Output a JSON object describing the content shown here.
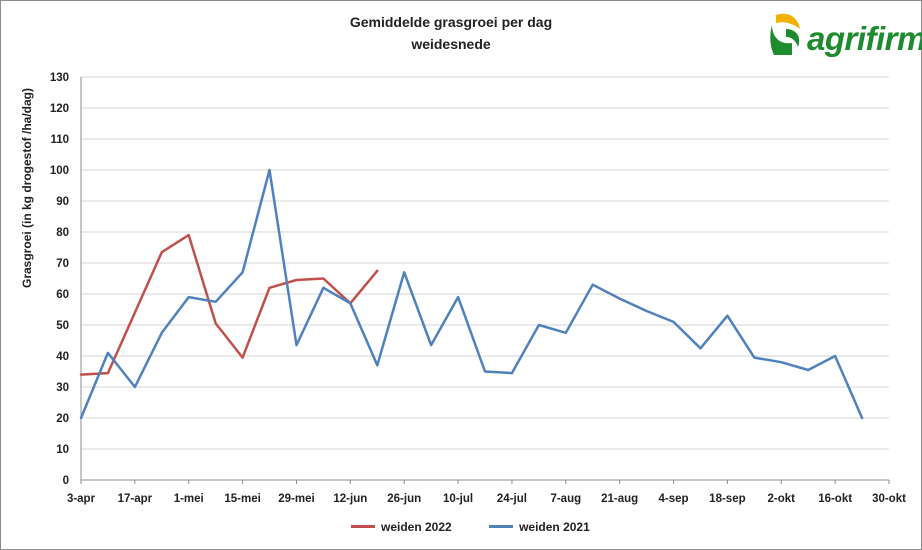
{
  "logo": {
    "name": "agrifirm",
    "icon": "agrifirm-logo-icon"
  },
  "colors": {
    "series_2022": "#c0504d",
    "series_2021": "#4f81bd",
    "logo_green": "#1e8c2e",
    "logo_yellow": "#f2b100"
  },
  "chart_data": {
    "type": "line",
    "title_lines": [
      "Gemiddelde grasgroei per dag",
      "weidesnede"
    ],
    "ylabel": "Grasgroei (in kg drogestof /ha/dag)",
    "xlabel": "",
    "ylim": [
      0,
      130
    ],
    "yticks": [
      0,
      10,
      20,
      30,
      40,
      50,
      60,
      70,
      80,
      90,
      100,
      110,
      120,
      130
    ],
    "xlim": [
      "2021-04-03",
      "2021-10-30"
    ],
    "xticks": [
      "3-apr",
      "17-apr",
      "1-mei",
      "15-mei",
      "29-mei",
      "12-jun",
      "26-jun",
      "10-jul",
      "24-jul",
      "7-aug",
      "21-aug",
      "4-sep",
      "18-sep",
      "2-okt",
      "16-okt",
      "30-okt"
    ],
    "grid": {
      "horizontal": true,
      "vertical": false
    },
    "legend_position": "bottom",
    "series": [
      {
        "name": "weiden 2022",
        "color": "#c0504d",
        "x": [
          "2021-04-03",
          "2021-04-10",
          "2021-04-17",
          "2021-04-24",
          "2021-05-01",
          "2021-05-08",
          "2021-05-15",
          "2021-05-22",
          "2021-05-29",
          "2021-06-05",
          "2021-06-12",
          "2021-06-19"
        ],
        "y": [
          34,
          34.5,
          54,
          73.5,
          79,
          50.5,
          39.5,
          62,
          64.5,
          65,
          57,
          67.5
        ]
      },
      {
        "name": "weiden 2021",
        "color": "#4f81bd",
        "x": [
          "2021-04-03",
          "2021-04-10",
          "2021-04-17",
          "2021-04-24",
          "2021-05-01",
          "2021-05-08",
          "2021-05-15",
          "2021-05-22",
          "2021-05-29",
          "2021-06-05",
          "2021-06-12",
          "2021-06-19",
          "2021-06-26",
          "2021-07-03",
          "2021-07-10",
          "2021-07-17",
          "2021-07-24",
          "2021-07-31",
          "2021-08-07",
          "2021-08-14",
          "2021-08-21",
          "2021-08-28",
          "2021-09-04",
          "2021-09-11",
          "2021-09-18",
          "2021-09-25",
          "2021-10-02",
          "2021-10-09",
          "2021-10-16",
          "2021-10-23"
        ],
        "y": [
          20,
          41,
          30,
          47.5,
          59,
          57.5,
          67,
          100,
          43.5,
          62,
          57,
          37,
          67,
          43.5,
          59,
          35,
          34.5,
          50,
          47.5,
          63,
          58.5,
          54.5,
          51,
          42.5,
          53,
          39.5,
          38,
          35.5,
          40,
          20
        ]
      }
    ]
  }
}
